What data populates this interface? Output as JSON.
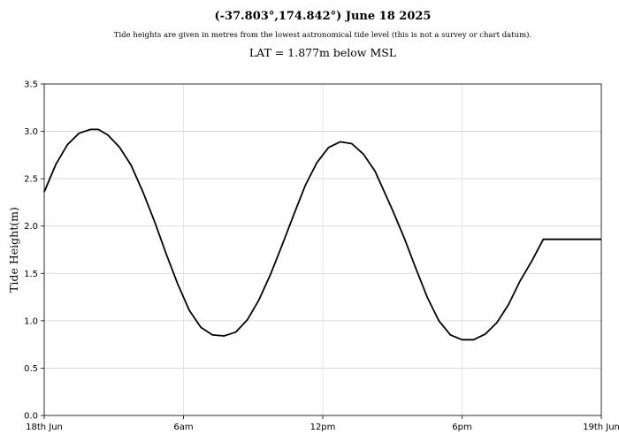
{
  "chart_data": {
    "type": "line",
    "title": "(-37.803°,174.842°) June 18 2025",
    "subtitle": "Tide heights are given in metres from the lowest astronomical tide level (this is not a survey or chart datum).",
    "subtitle2": "LAT = 1.877m below MSL",
    "xlabel": "",
    "ylabel": "Tide Height(m)",
    "xlim": [
      0,
      24
    ],
    "ylim": [
      0,
      3.5
    ],
    "grid": true,
    "xticks": [
      {
        "value": 0,
        "label": "18th Jun"
      },
      {
        "value": 6,
        "label": "6am"
      },
      {
        "value": 12,
        "label": "12pm"
      },
      {
        "value": 18,
        "label": "6pm"
      },
      {
        "value": 24,
        "label": "19th Jun"
      }
    ],
    "yticks": [
      {
        "value": 0,
        "label": "0.0"
      },
      {
        "value": 0.5,
        "label": "0.5"
      },
      {
        "value": 1.0,
        "label": "1.0"
      },
      {
        "value": 1.5,
        "label": "1.5"
      },
      {
        "value": 2.0,
        "label": "2.0"
      },
      {
        "value": 2.5,
        "label": "2.5"
      },
      {
        "value": 3.0,
        "label": "3.0"
      },
      {
        "value": 3.5,
        "label": "3.5"
      }
    ],
    "series": [
      {
        "color": "#000000",
        "x": [
          0,
          0.5,
          1.0,
          1.5,
          2.0,
          2.33,
          2.75,
          3.25,
          3.75,
          4.25,
          4.75,
          5.25,
          5.75,
          6.25,
          6.75,
          7.25,
          7.75,
          8.25,
          8.75,
          9.25,
          9.75,
          10.25,
          10.75,
          11.25,
          11.75,
          12.25,
          12.75,
          13.25,
          13.75,
          14.25,
          14.6,
          15.0,
          15.5,
          16.0,
          16.5,
          17.0,
          17.5,
          18.0,
          18.5,
          19.0,
          19.5,
          20.0,
          20.5,
          21.0,
          21.5,
          22.0,
          22.5,
          23.0,
          23.5,
          24.0
        ],
        "y": [
          2.36,
          2.65,
          2.86,
          2.98,
          3.02,
          3.02,
          2.96,
          2.83,
          2.64,
          2.36,
          2.05,
          1.71,
          1.39,
          1.11,
          0.93,
          0.85,
          0.84,
          0.88,
          1.01,
          1.22,
          1.49,
          1.8,
          2.12,
          2.43,
          2.67,
          2.83,
          2.89,
          2.87,
          2.76,
          2.58,
          2.39,
          2.17,
          1.88,
          1.56,
          1.25,
          1.0,
          0.85,
          0.8,
          0.8,
          0.86,
          0.98,
          1.17,
          1.42,
          1.63,
          1.86,
          1.86,
          1.86,
          1.86,
          1.86,
          1.86
        ]
      }
    ]
  }
}
